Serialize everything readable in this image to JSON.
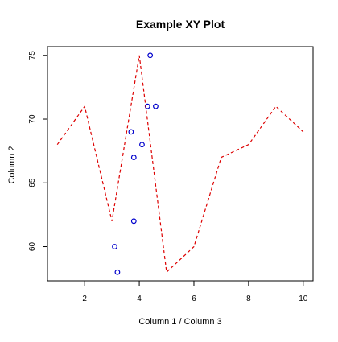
{
  "chart_data": {
    "type": "scatter",
    "title": "Example XY Plot",
    "xlabel": "Column 1 / Column 3",
    "ylabel": "Column 2",
    "xlim": [
      0.64,
      10.36
    ],
    "ylim": [
      57.32,
      75.68
    ],
    "x_ticks": [
      2,
      4,
      6,
      8,
      10
    ],
    "y_ticks": [
      60,
      65,
      70,
      75
    ],
    "grid": false,
    "series": [
      {
        "type": "scatter",
        "marker": "open-circle",
        "color": "#0000cc",
        "points": [
          {
            "x": 3.1,
            "y": 60
          },
          {
            "x": 3.2,
            "y": 58
          },
          {
            "x": 3.7,
            "y": 69
          },
          {
            "x": 3.8,
            "y": 67
          },
          {
            "x": 3.8,
            "y": 62
          },
          {
            "x": 4.1,
            "y": 68
          },
          {
            "x": 4.3,
            "y": 71
          },
          {
            "x": 4.4,
            "y": 75
          },
          {
            "x": 4.6,
            "y": 71
          }
        ]
      },
      {
        "type": "line",
        "style": "dashed",
        "color": "#dd0000",
        "points": [
          {
            "x": 1,
            "y": 68
          },
          {
            "x": 2,
            "y": 71
          },
          {
            "x": 3,
            "y": 62
          },
          {
            "x": 4,
            "y": 75
          },
          {
            "x": 5,
            "y": 58
          },
          {
            "x": 6,
            "y": 60
          },
          {
            "x": 7,
            "y": 67
          },
          {
            "x": 8,
            "y": 68
          },
          {
            "x": 9,
            "y": 71
          },
          {
            "x": 10,
            "y": 69
          }
        ]
      }
    ]
  }
}
